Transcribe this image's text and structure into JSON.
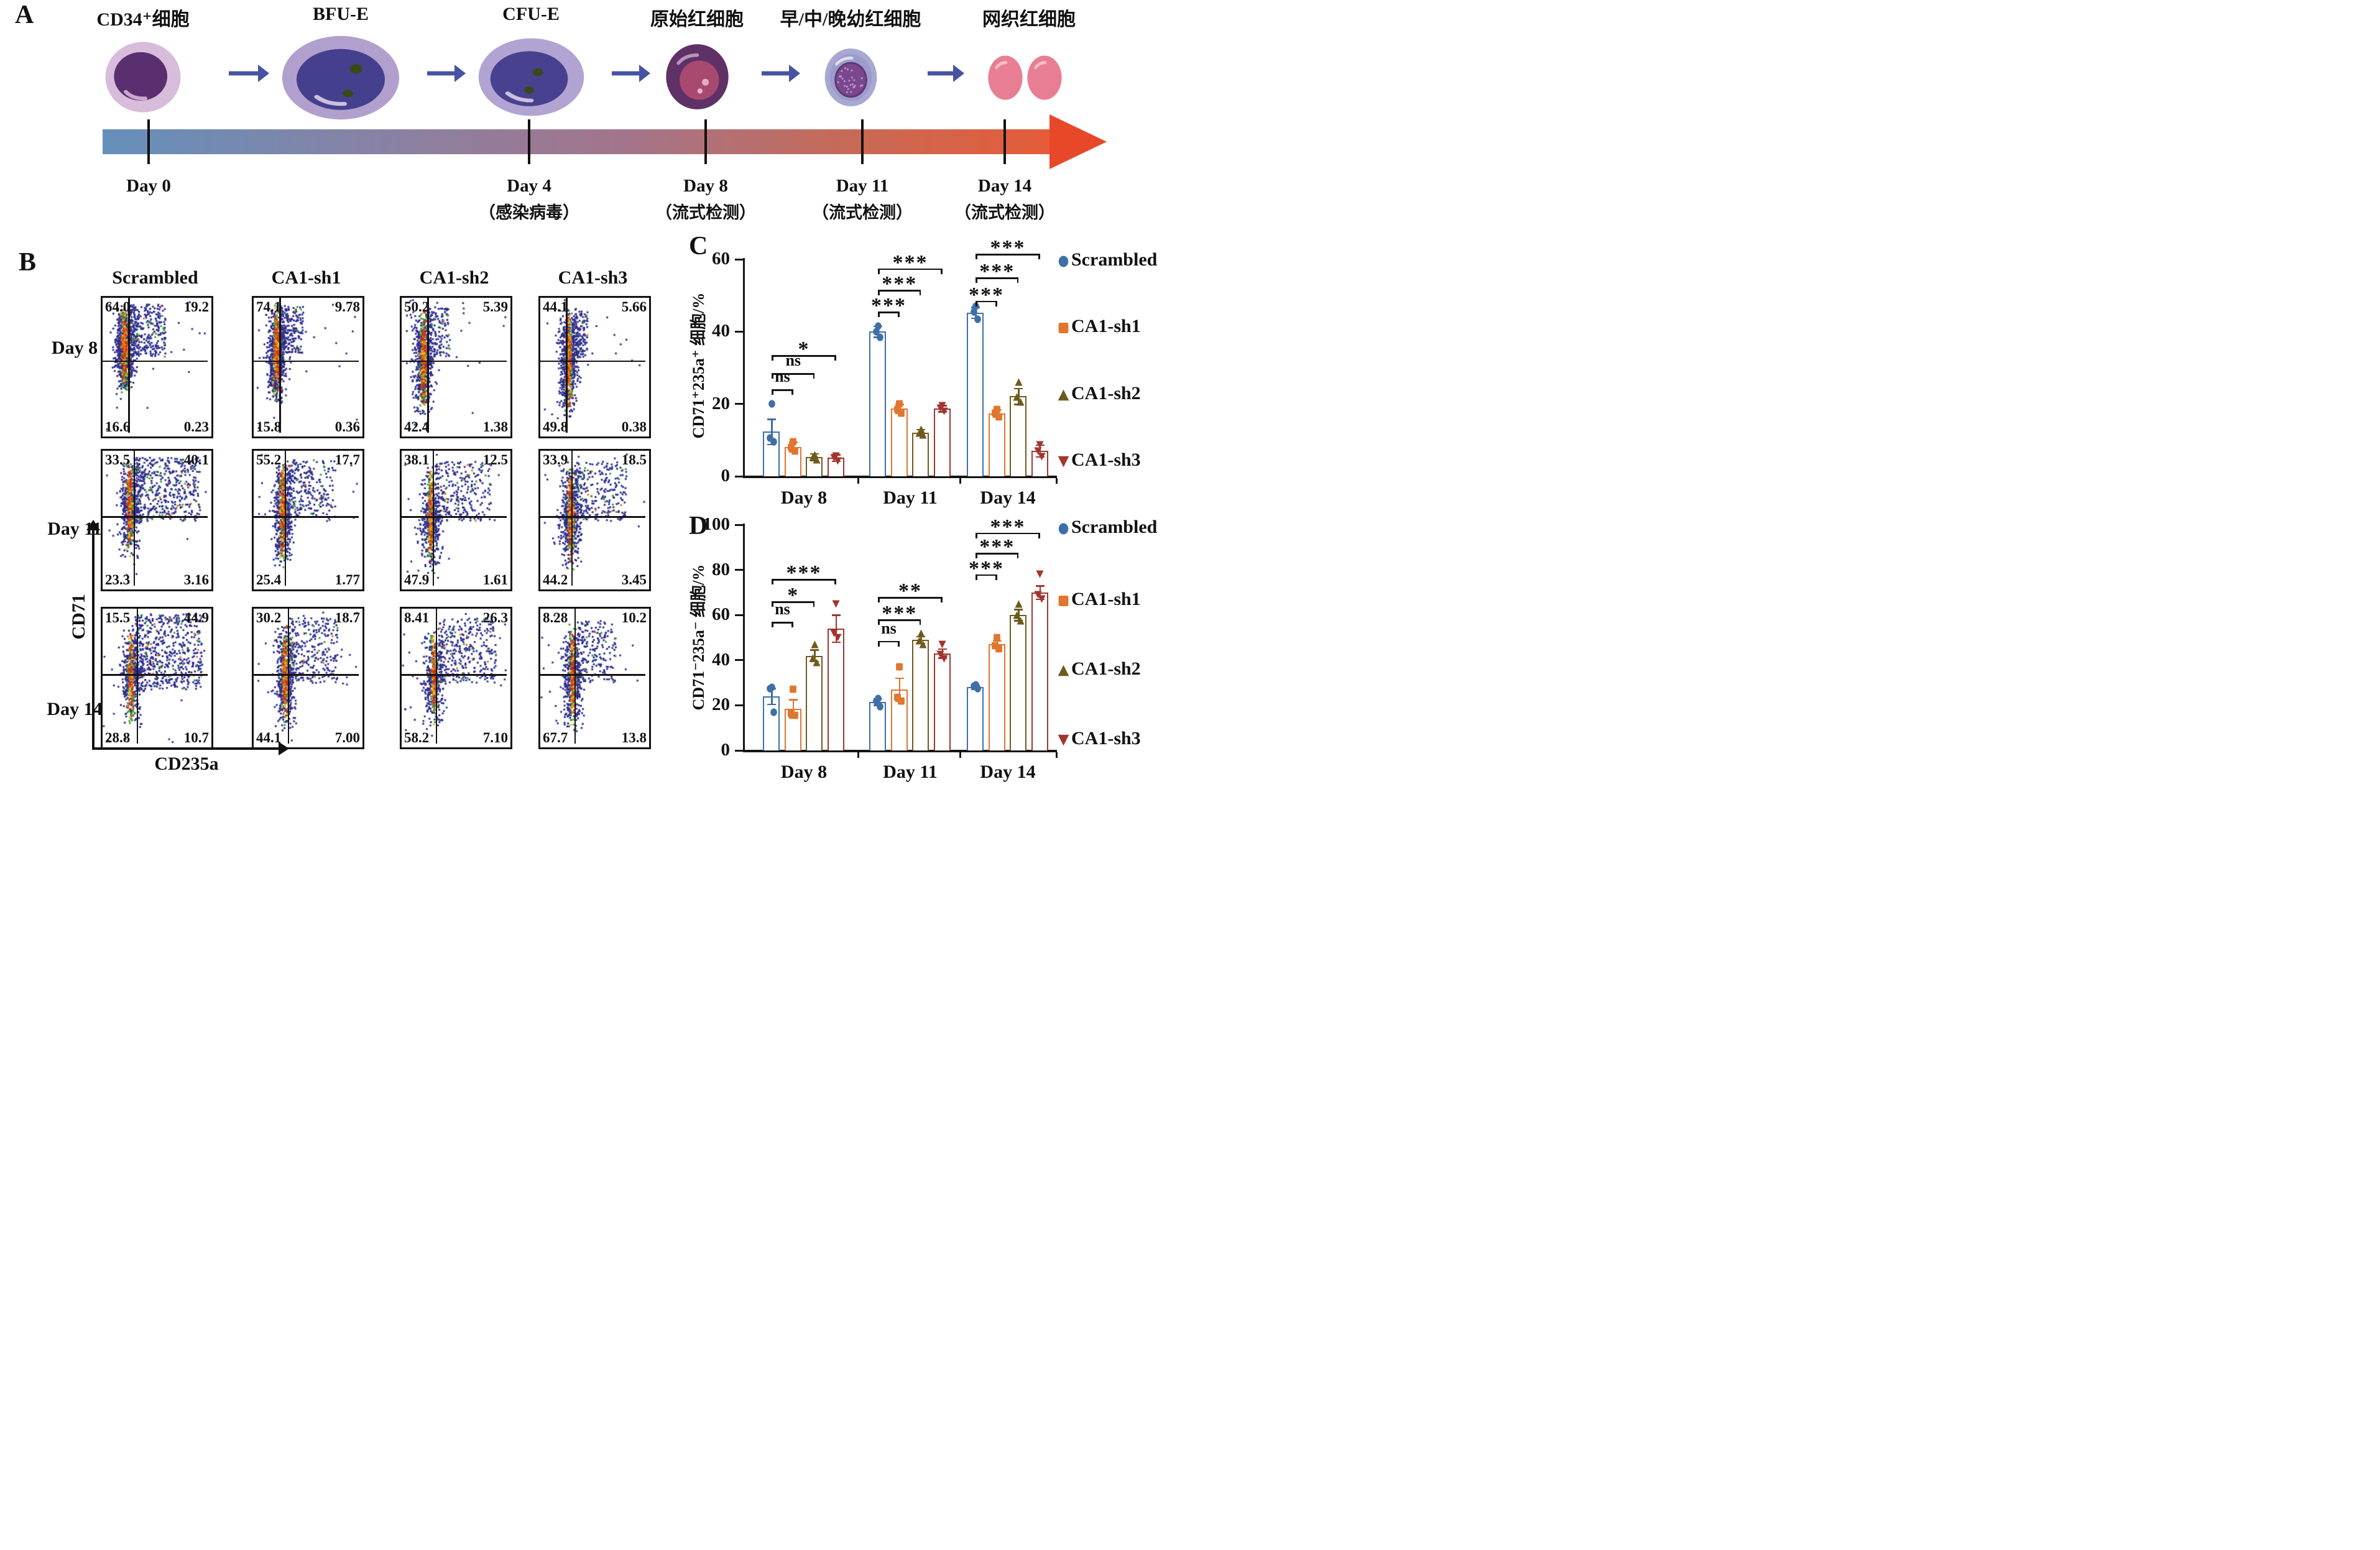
{
  "panel_a": {
    "label": "A",
    "stages": [
      {
        "name": "CD34⁺细胞",
        "icon": "cd34-cell"
      },
      {
        "name": "BFU-E",
        "icon": "bfu-e-cell"
      },
      {
        "name": "CFU-E",
        "icon": "cfu-e-cell"
      },
      {
        "name": "原始红细胞",
        "icon": "proerythroblast-cell"
      },
      {
        "name": "早/中/晚幼红细胞",
        "icon": "erythroblast-cell"
      },
      {
        "name": "网织红细胞",
        "icon": "reticulocyte-cells"
      }
    ],
    "timeline_points": [
      {
        "day": "Day 0",
        "note": ""
      },
      {
        "day": "Day 4",
        "note": "（感染病毒）"
      },
      {
        "day": "Day 8",
        "note": "（流式检测）"
      },
      {
        "day": "Day 11",
        "note": "（流式检测）"
      },
      {
        "day": "Day 14",
        "note": "（流式检测）"
      }
    ],
    "colors": {
      "timeline_gradient": [
        "#6590bb",
        "#8981a4",
        "#a3758b",
        "#c66a58",
        "#e55c38"
      ],
      "timeline_arrowhead": "#e8482a",
      "stage_arrow": "#4752a3"
    }
  },
  "panel_b": {
    "label": "B",
    "column_headers": [
      "Scrambled",
      "CA1-sh1",
      "CA1-sh2",
      "CA1-sh3"
    ],
    "row_labels": [
      "Day 8",
      "Day 11",
      "Day 14"
    ],
    "x_axis_label": "CD235a",
    "y_axis_label": "CD71",
    "rows": [
      {
        "day": "Day 8",
        "plots": [
          {
            "group": "Scrambled",
            "q": [
              "64.0",
              "19.2",
              "16.6",
              "0.23"
            ]
          },
          {
            "group": "CA1-sh1",
            "q": [
              "74.1",
              "9.78",
              "15.8",
              "0.36"
            ]
          },
          {
            "group": "CA1-sh2",
            "q": [
              "50.2",
              "5.39",
              "42.4",
              "1.38"
            ]
          },
          {
            "group": "CA1-sh3",
            "q": [
              "44.1",
              "5.66",
              "49.8",
              "0.38"
            ]
          }
        ]
      },
      {
        "day": "Day 11",
        "plots": [
          {
            "group": "Scrambled",
            "q": [
              "33.5",
              "40.1",
              "23.3",
              "3.16"
            ]
          },
          {
            "group": "CA1-sh1",
            "q": [
              "55.2",
              "17.7",
              "25.4",
              "1.77"
            ]
          },
          {
            "group": "CA1-sh2",
            "q": [
              "38.1",
              "12.5",
              "47.9",
              "1.61"
            ]
          },
          {
            "group": "CA1-sh3",
            "q": [
              "33.9",
              "18.5",
              "44.2",
              "3.45"
            ]
          }
        ]
      },
      {
        "day": "Day 14",
        "plots": [
          {
            "group": "Scrambled",
            "q": [
              "15.5",
              "44.9",
              "28.8",
              "10.7"
            ]
          },
          {
            "group": "CA1-sh1",
            "q": [
              "30.2",
              "18.7",
              "44.1",
              "7.00"
            ]
          },
          {
            "group": "CA1-sh2",
            "q": [
              "8.41",
              "26.3",
              "58.2",
              "7.10"
            ]
          },
          {
            "group": "CA1-sh3",
            "q": [
              "8.28",
              "10.2",
              "67.7",
              "13.8"
            ]
          }
        ]
      }
    ]
  },
  "chart_data": [
    {
      "id": "panel_c",
      "panel_label": "C",
      "type": "bar",
      "categories": [
        "Day 8",
        "Day 11",
        "Day 14"
      ],
      "series": [
        {
          "name": "Scrambled",
          "marker": "circle",
          "color": "#3f6fa8",
          "values": [
            12.3,
            40.0,
            45.2
          ],
          "errors": [
            3.5,
            1.5,
            1.5
          ],
          "points": [
            [
              20,
              10.5,
              9.5
            ],
            [
              41.5,
              40,
              38.5
            ],
            [
              47,
              45.5,
              43.5
            ]
          ]
        },
        {
          "name": "CA1-sh1",
          "marker": "square",
          "color": "#e0762f",
          "values": [
            8.1,
            18.7,
            17.4
          ],
          "errors": [
            1.3,
            1.2,
            1.0
          ],
          "points": [
            [
              9.5,
              8,
              7
            ],
            [
              20,
              18.5,
              17.5
            ],
            [
              18.5,
              17.5,
              16.5
            ]
          ]
        },
        {
          "name": "CA1-sh2",
          "marker": "triangle-up",
          "color": "#6f5a1e",
          "values": [
            5.3,
            12.1,
            22.1
          ],
          "errors": [
            0.9,
            0.8,
            2.2
          ],
          "points": [
            [
              6,
              5.3,
              4.5
            ],
            [
              13,
              12,
              11.5
            ],
            [
              26,
              22,
              20.5
            ]
          ]
        },
        {
          "name": "CA1-sh3",
          "marker": "triangle-down",
          "color": "#a23531",
          "values": [
            5.1,
            18.7,
            7.0
          ],
          "errors": [
            0.9,
            0.9,
            1.6
          ],
          "points": [
            [
              5.6,
              5,
              4.2
            ],
            [
              19.5,
              18.8,
              18
            ],
            [
              8.6,
              7,
              5.5
            ]
          ]
        }
      ],
      "xlabel": "",
      "ylabel": "CD71⁺235a⁺ 细胞/%",
      "ylim": [
        0,
        60
      ],
      "yticks": [
        0,
        20,
        40,
        60
      ],
      "grid": false,
      "legend_position": "right",
      "significance": [
        {
          "category": "Day 8",
          "comparisons": [
            {
              "vs": "CA1-sh1",
              "label": "ns",
              "height": 24
            },
            {
              "vs": "CA1-sh2",
              "label": "ns",
              "height": 28.5
            },
            {
              "vs": "CA1-sh3",
              "label": "*",
              "height": 33.5
            }
          ]
        },
        {
          "category": "Day 11",
          "comparisons": [
            {
              "vs": "CA1-sh1",
              "label": "***",
              "height": 45.5
            },
            {
              "vs": "CA1-sh2",
              "label": "***",
              "height": 51.5
            },
            {
              "vs": "CA1-sh3",
              "label": "***",
              "height": 57.5
            }
          ]
        },
        {
          "category": "Day 14",
          "comparisons": [
            {
              "vs": "CA1-sh1",
              "label": "***",
              "height": 48.5
            },
            {
              "vs": "CA1-sh2",
              "label": "***",
              "height": 55
            },
            {
              "vs": "CA1-sh3",
              "label": "***",
              "height": 61.5
            }
          ]
        }
      ]
    },
    {
      "id": "panel_d",
      "panel_label": "D",
      "type": "bar",
      "categories": [
        "Day 8",
        "Day 11",
        "Day 14"
      ],
      "series": [
        {
          "name": "Scrambled",
          "marker": "circle",
          "color": "#3f6fa8",
          "values": [
            24,
            21.5,
            28
          ],
          "errors": [
            3.5,
            1.5,
            1.0
          ],
          "points": [
            [
              28,
              27.5,
              17
            ],
            [
              23,
              22,
              19.5
            ],
            [
              29,
              28.5,
              27.5
            ]
          ]
        },
        {
          "name": "CA1-sh1",
          "marker": "square",
          "color": "#e0762f",
          "values": [
            18.5,
            27,
            47
          ],
          "errors": [
            4.0,
            5.0,
            1.5
          ],
          "points": [
            [
              27,
              16.5,
              15.5
            ],
            [
              37,
              23.5,
              22
            ],
            [
              50,
              46.5,
              45
            ]
          ]
        },
        {
          "name": "CA1-sh2",
          "marker": "triangle-up",
          "color": "#6f5a1e",
          "values": [
            42,
            49,
            60
          ],
          "errors": [
            2.5,
            1.5,
            2.5
          ],
          "points": [
            [
              47,
              41,
              39
            ],
            [
              52,
              48.5,
              47
            ],
            [
              65,
              60,
              57.5
            ]
          ]
        },
        {
          "name": "CA1-sh3",
          "marker": "triangle-down",
          "color": "#a23531",
          "values": [
            54,
            43,
            70
          ],
          "errors": [
            6,
            2,
            3
          ],
          "points": [
            [
              65,
              52,
              50
            ],
            [
              47,
              42.5,
              40.5
            ],
            [
              78,
              69,
              67
            ]
          ]
        }
      ],
      "xlabel": "",
      "ylabel": "CD71⁻235a⁻ 细胞/%",
      "ylim": [
        0,
        100
      ],
      "yticks": [
        0,
        20,
        40,
        60,
        80,
        100
      ],
      "grid": false,
      "legend_position": "right",
      "significance": [
        {
          "category": "Day 8",
          "comparisons": [
            {
              "vs": "CA1-sh1",
              "label": "ns",
              "height": 57
            },
            {
              "vs": "CA1-sh2",
              "label": "*",
              "height": 66
            },
            {
              "vs": "CA1-sh3",
              "label": "***",
              "height": 76
            }
          ]
        },
        {
          "category": "Day 11",
          "comparisons": [
            {
              "vs": "CA1-sh1",
              "label": "ns",
              "height": 48.5
            },
            {
              "vs": "CA1-sh2",
              "label": "***",
              "height": 58
            },
            {
              "vs": "CA1-sh3",
              "label": "**",
              "height": 68
            }
          ]
        },
        {
          "category": "Day 14",
          "comparisons": [
            {
              "vs": "CA1-sh1",
              "label": "***",
              "height": 78
            },
            {
              "vs": "CA1-sh2",
              "label": "***",
              "height": 87.5
            },
            {
              "vs": "CA1-sh3",
              "label": "***",
              "height": 96.5
            }
          ]
        }
      ]
    }
  ]
}
